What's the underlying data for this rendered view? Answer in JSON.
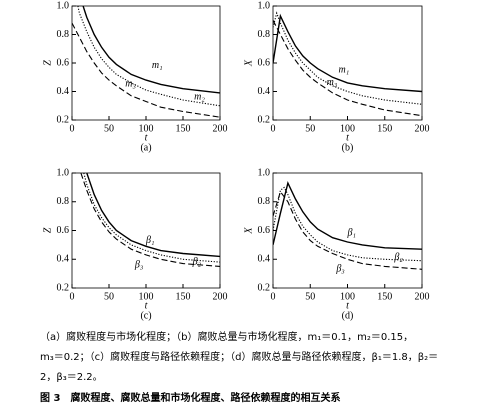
{
  "chart_data": [
    {
      "type": "line",
      "label": "(a)",
      "ylabel": "Z",
      "xlabel": "t",
      "xlim": [
        0,
        200
      ],
      "xticks": [
        0,
        50,
        100,
        150,
        200
      ],
      "ylim": [
        0.2,
        1
      ],
      "yticks": [
        0.2,
        0.4,
        0.6,
        0.8,
        {
          "value": 1,
          "label": "1.0"
        }
      ],
      "series": [
        {
          "name": "m₁",
          "color": "#000000",
          "dash": "solid",
          "x": [
            15,
            20,
            30,
            40,
            50,
            60,
            80,
            100,
            120,
            150,
            200
          ],
          "values": [
            1.0,
            0.92,
            0.8,
            0.71,
            0.64,
            0.59,
            0.52,
            0.48,
            0.45,
            0.42,
            0.39
          ]
        },
        {
          "name": "m₂",
          "color": "#000000",
          "dash": "dotted",
          "x": [
            8,
            10,
            20,
            30,
            40,
            50,
            60,
            80,
            100,
            120,
            150,
            200
          ],
          "values": [
            1.0,
            0.95,
            0.82,
            0.71,
            0.63,
            0.57,
            0.52,
            0.46,
            0.41,
            0.38,
            0.34,
            0.3
          ]
        },
        {
          "name": "m₃",
          "color": "#000000",
          "dash": "dashed",
          "x": [
            0,
            10,
            20,
            30,
            40,
            50,
            60,
            80,
            100,
            120,
            150,
            200
          ],
          "values": [
            0.88,
            0.78,
            0.68,
            0.6,
            0.53,
            0.48,
            0.44,
            0.37,
            0.33,
            0.29,
            0.26,
            0.22
          ]
        }
      ]
    },
    {
      "type": "line",
      "label": "(b)",
      "ylabel": "X",
      "xlabel": "t",
      "xlim": [
        0,
        200
      ],
      "xticks": [
        0,
        50,
        100,
        150,
        200
      ],
      "ylim": [
        0.2,
        1
      ],
      "yticks": [
        0.2,
        0.4,
        0.6,
        0.8,
        {
          "value": 1,
          "label": "1.0"
        }
      ],
      "series": [
        {
          "name": "m₁",
          "color": "#000000",
          "dash": "solid",
          "x": [
            0,
            10,
            20,
            30,
            40,
            50,
            60,
            80,
            100,
            120,
            150,
            200
          ],
          "values": [
            0.6,
            0.93,
            0.82,
            0.72,
            0.65,
            0.6,
            0.56,
            0.5,
            0.46,
            0.44,
            0.42,
            0.4
          ]
        },
        {
          "color": "#000000",
          "dash": "dotted",
          "x": [
            0,
            5,
            10,
            20,
            30,
            40,
            50,
            60,
            80,
            100,
            120,
            150,
            200
          ],
          "values": [
            0.85,
            0.95,
            0.88,
            0.76,
            0.67,
            0.6,
            0.55,
            0.5,
            0.44,
            0.4,
            0.37,
            0.34,
            0.31
          ]
        },
        {
          "name": "m₃",
          "color": "#000000",
          "dash": "dashed",
          "x": [
            0,
            10,
            20,
            30,
            40,
            50,
            60,
            80,
            100,
            120,
            150,
            200
          ],
          "values": [
            0.9,
            0.8,
            0.7,
            0.62,
            0.55,
            0.5,
            0.46,
            0.39,
            0.34,
            0.31,
            0.27,
            0.23
          ]
        }
      ]
    },
    {
      "type": "line",
      "label": "(c)",
      "ylabel": "Z",
      "xlabel": "t",
      "xlim": [
        0,
        200
      ],
      "xticks": [
        0,
        50,
        100,
        150,
        200
      ],
      "ylim": [
        0.2,
        1
      ],
      "yticks": [
        0.2,
        0.4,
        0.6,
        0.8,
        {
          "value": 1,
          "label": "1.0"
        }
      ],
      "series": [
        {
          "name": "β₁",
          "color": "#000000",
          "dash": "solid",
          "x": [
            20,
            30,
            40,
            50,
            60,
            80,
            100,
            120,
            150,
            200
          ],
          "values": [
            1.0,
            0.85,
            0.74,
            0.66,
            0.6,
            0.53,
            0.49,
            0.46,
            0.44,
            0.42
          ]
        },
        {
          "name": "β₂",
          "color": "#000000",
          "dash": "dotted",
          "x": [
            16,
            20,
            30,
            40,
            50,
            60,
            80,
            100,
            120,
            150,
            200
          ],
          "values": [
            1.0,
            0.92,
            0.78,
            0.69,
            0.62,
            0.57,
            0.5,
            0.46,
            0.43,
            0.4,
            0.38
          ]
        },
        {
          "name": "β₃",
          "color": "#000000",
          "dash": "dashed",
          "x": [
            12,
            20,
            30,
            40,
            50,
            60,
            80,
            100,
            120,
            150,
            200
          ],
          "values": [
            1.0,
            0.88,
            0.75,
            0.66,
            0.59,
            0.54,
            0.47,
            0.43,
            0.4,
            0.37,
            0.35
          ]
        }
      ]
    },
    {
      "type": "line",
      "label": "(d)",
      "ylabel": "X",
      "xlabel": "t",
      "xlim": [
        0,
        200
      ],
      "xticks": [
        0,
        50,
        100,
        150,
        200
      ],
      "ylim": [
        0.2,
        1
      ],
      "yticks": [
        0.2,
        0.4,
        0.6,
        0.8,
        {
          "value": 1,
          "label": "1.0"
        }
      ],
      "series": [
        {
          "name": "β₁",
          "color": "#000000",
          "dash": "solid",
          "x": [
            0,
            10,
            20,
            30,
            40,
            50,
            60,
            80,
            100,
            120,
            150,
            200
          ],
          "values": [
            0.5,
            0.72,
            0.93,
            0.82,
            0.73,
            0.66,
            0.61,
            0.55,
            0.52,
            0.5,
            0.48,
            0.47
          ]
        },
        {
          "name": "β₂",
          "color": "#000000",
          "dash": "dotted",
          "x": [
            0,
            10,
            15,
            20,
            30,
            40,
            50,
            60,
            80,
            100,
            120,
            150,
            200
          ],
          "values": [
            0.6,
            0.88,
            0.9,
            0.85,
            0.72,
            0.63,
            0.57,
            0.52,
            0.46,
            0.43,
            0.41,
            0.4,
            0.39
          ]
        },
        {
          "name": "β₃",
          "color": "#000000",
          "dash": "dashed",
          "x": [
            0,
            10,
            20,
            30,
            40,
            50,
            60,
            80,
            100,
            120,
            150,
            200
          ],
          "values": [
            0.7,
            0.87,
            0.8,
            0.68,
            0.59,
            0.53,
            0.49,
            0.44,
            0.4,
            0.37,
            0.35,
            0.33
          ]
        }
      ]
    }
  ],
  "caption": {
    "lines": [
      "（a）腐败程度与市场化程度；（b）腐败总量与市场化程度，m₁＝0.1，m₂＝0.15，",
      "m₃＝0.2；（c）腐败程度与路径依赖程度；（d）腐败总量与路径依赖程度，β₁＝1.8，β₂＝",
      "2，β₃＝2.2。"
    ],
    "title": "图 3　腐败程度、腐败总量和市场化程度、路径依赖程度的相互关系"
  }
}
